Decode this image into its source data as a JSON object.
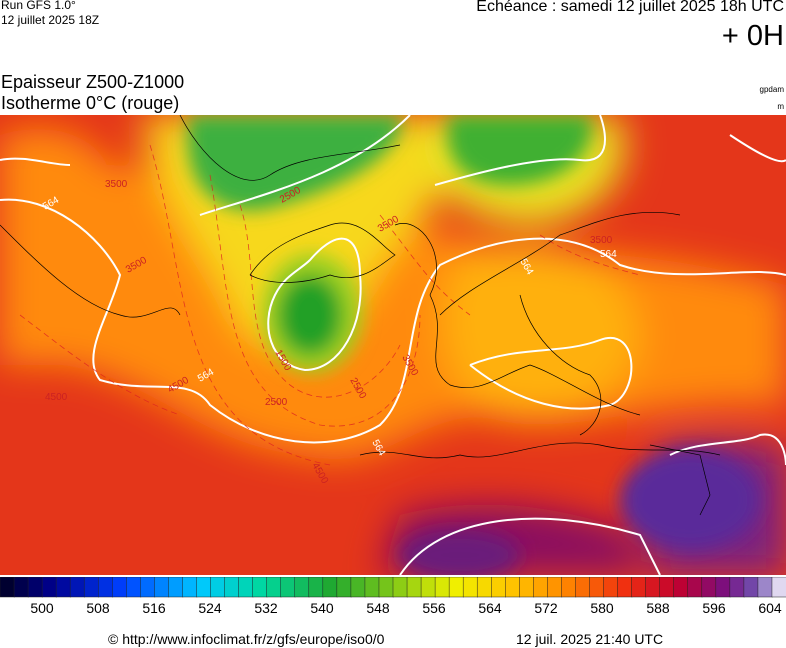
{
  "header": {
    "run": "Run GFS 1.0°",
    "run_date": "12 juillet 2025 18Z",
    "echeance": "Echéance : samedi 12 juillet 2025 18h UTC",
    "offset": "+ 0H"
  },
  "map": {
    "title": "Epaisseur Z500-Z1000",
    "subtitle": "Isotherme 0°C (rouge)",
    "unit_thickness": "gpdam",
    "unit_iso": "m",
    "labels": [
      "564",
      "564",
      "564",
      "564",
      "564",
      "3500",
      "3500",
      "3500",
      "3500",
      "2500",
      "2500",
      "2500",
      "4500",
      "4500",
      "4500",
      "3500",
      "1500"
    ]
  },
  "colorbar": {
    "ticks": [
      "500",
      "508",
      "516",
      "524",
      "532",
      "540",
      "548",
      "556",
      "564",
      "572",
      "580",
      "588",
      "596",
      "604"
    ]
  },
  "footer": {
    "source": "© http://www.infoclimat.fr/z/gfs/europe/iso0/0",
    "created": "12 juil. 2025 21:40 UTC"
  }
}
